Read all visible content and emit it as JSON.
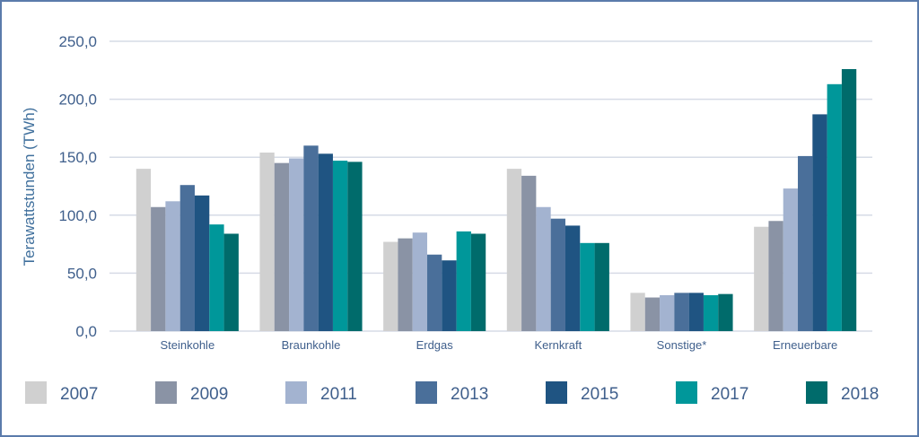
{
  "chart_data": {
    "type": "bar",
    "title": "",
    "xlabel": "",
    "ylabel": "Terawattstunden (TWh)",
    "ylim": [
      0,
      250
    ],
    "yticks": [
      "0,0",
      "50,0",
      "100,0",
      "150,0",
      "200,0",
      "250,0"
    ],
    "ytick_values": [
      0,
      50,
      100,
      150,
      200,
      250
    ],
    "grid": true,
    "legend_placement": "bottom",
    "categories": [
      "Steinkohle",
      "Braunkohle",
      "Erdgas",
      "Kernkraft",
      "Sonstige*",
      "Erneuerbare"
    ],
    "series": [
      {
        "name": "2007",
        "color": "#d0d0d0",
        "values": [
          140,
          154,
          77,
          140,
          33,
          90
        ]
      },
      {
        "name": "2009",
        "color": "#8a93a5",
        "values": [
          107,
          145,
          80,
          134,
          29,
          95
        ]
      },
      {
        "name": "2011",
        "color": "#a3b3d0",
        "values": [
          112,
          149,
          85,
          107,
          31,
          123
        ]
      },
      {
        "name": "2013",
        "color": "#4a6f9a",
        "values": [
          126,
          160,
          66,
          97,
          33,
          151
        ]
      },
      {
        "name": "2015",
        "color": "#1f5482",
        "values": [
          117,
          153,
          61,
          91,
          33,
          187
        ]
      },
      {
        "name": "2017",
        "color": "#00979a",
        "values": [
          92,
          147,
          86,
          76,
          31,
          213
        ]
      },
      {
        "name": "2018",
        "color": "#006b6b",
        "values": [
          84,
          146,
          84,
          76,
          32,
          226
        ]
      }
    ]
  }
}
